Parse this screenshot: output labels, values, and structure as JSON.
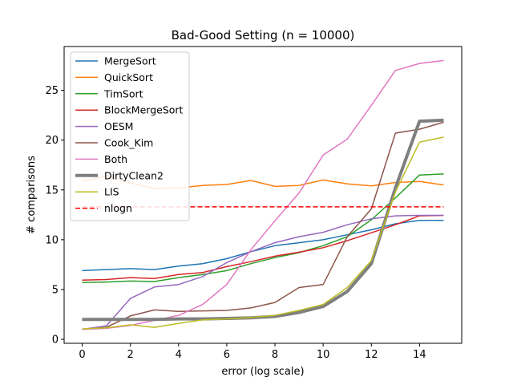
{
  "chart_data": {
    "type": "line",
    "title": "Bad-Good Setting (n = 10000)",
    "xlabel": "error (log scale)",
    "ylabel": "# comparisons",
    "xlim": [
      -0.75,
      15.75
    ],
    "ylim": [
      -0.4,
      29.4
    ],
    "xticks": [
      0,
      2,
      4,
      6,
      8,
      10,
      12,
      14
    ],
    "yticks": [
      0,
      5,
      10,
      15,
      20,
      25
    ],
    "grid": false,
    "legend_position": "upper-left",
    "x": [
      0,
      1,
      2,
      3,
      4,
      5,
      6,
      7,
      8,
      9,
      10,
      11,
      12,
      13,
      14,
      15
    ],
    "series": [
      {
        "name": "MergeSort",
        "color": "#1f77b4",
        "style": "solid",
        "width": 1.5,
        "values": [
          6.9,
          7.0,
          7.1,
          7.0,
          7.35,
          7.6,
          8.1,
          8.8,
          9.4,
          9.7,
          10.0,
          10.5,
          11.0,
          11.6,
          11.95,
          11.95
        ]
      },
      {
        "name": "QuickSort",
        "color": "#ff7f0e",
        "style": "solid",
        "width": 1.5,
        "values": [
          15.85,
          16.4,
          15.7,
          15.15,
          15.2,
          15.45,
          15.55,
          15.95,
          15.35,
          15.45,
          16.0,
          15.6,
          15.4,
          15.75,
          15.85,
          15.5
        ]
      },
      {
        "name": "TimSort",
        "color": "#2ca02c",
        "style": "solid",
        "width": 1.5,
        "values": [
          5.7,
          5.75,
          5.85,
          5.8,
          6.2,
          6.5,
          6.9,
          7.6,
          8.2,
          8.7,
          9.4,
          10.3,
          12.0,
          14.2,
          16.5,
          16.6
        ]
      },
      {
        "name": "BlockMergeSort",
        "color": "#d62728",
        "style": "solid",
        "width": 1.5,
        "values": [
          5.95,
          6.0,
          6.2,
          6.1,
          6.5,
          6.7,
          7.3,
          7.8,
          8.35,
          8.75,
          9.2,
          9.9,
          10.7,
          11.5,
          12.4,
          12.45
        ]
      },
      {
        "name": "OESM",
        "color": "#9467bd",
        "style": "solid",
        "width": 1.5,
        "values": [
          1.0,
          1.35,
          4.1,
          5.25,
          5.5,
          6.3,
          7.7,
          8.8,
          9.7,
          10.3,
          10.75,
          11.5,
          12.1,
          12.4,
          12.45,
          12.45
        ]
      },
      {
        "name": "Cook_Kim",
        "color": "#8c564b",
        "style": "solid",
        "width": 1.5,
        "values": [
          1.0,
          1.2,
          2.35,
          2.95,
          2.8,
          2.85,
          2.9,
          3.15,
          3.7,
          5.2,
          5.5,
          10.3,
          13.1,
          20.7,
          21.1,
          21.8
        ]
      },
      {
        "name": "Both",
        "color": "#e377c2",
        "style": "solid",
        "width": 1.5,
        "values": [
          1.0,
          1.1,
          1.4,
          1.9,
          2.4,
          3.5,
          5.5,
          9.0,
          11.9,
          14.7,
          18.5,
          20.1,
          23.5,
          27.0,
          27.7,
          28.0
        ]
      },
      {
        "name": "DirtyClean2",
        "color": "#7f7f7f",
        "style": "solid",
        "width": 4,
        "values": [
          2.0,
          2.0,
          2.0,
          2.0,
          2.05,
          2.05,
          2.1,
          2.15,
          2.3,
          2.7,
          3.3,
          4.8,
          7.6,
          15.2,
          21.9,
          22.0
        ]
      },
      {
        "name": "LIS",
        "color": "#bcbd22",
        "style": "solid",
        "width": 1.5,
        "values": [
          1.05,
          1.15,
          1.45,
          1.2,
          1.6,
          1.95,
          2.05,
          2.2,
          2.4,
          2.9,
          3.5,
          5.2,
          7.9,
          14.8,
          19.8,
          20.3
        ]
      },
      {
        "name": "nlogn",
        "color": "#ff0000",
        "style": "dashed",
        "width": 1.5,
        "values": [
          13.3,
          13.3,
          13.3,
          13.3,
          13.3,
          13.3,
          13.3,
          13.3,
          13.3,
          13.3,
          13.3,
          13.3,
          13.3,
          13.3,
          13.3,
          13.3
        ]
      }
    ]
  }
}
